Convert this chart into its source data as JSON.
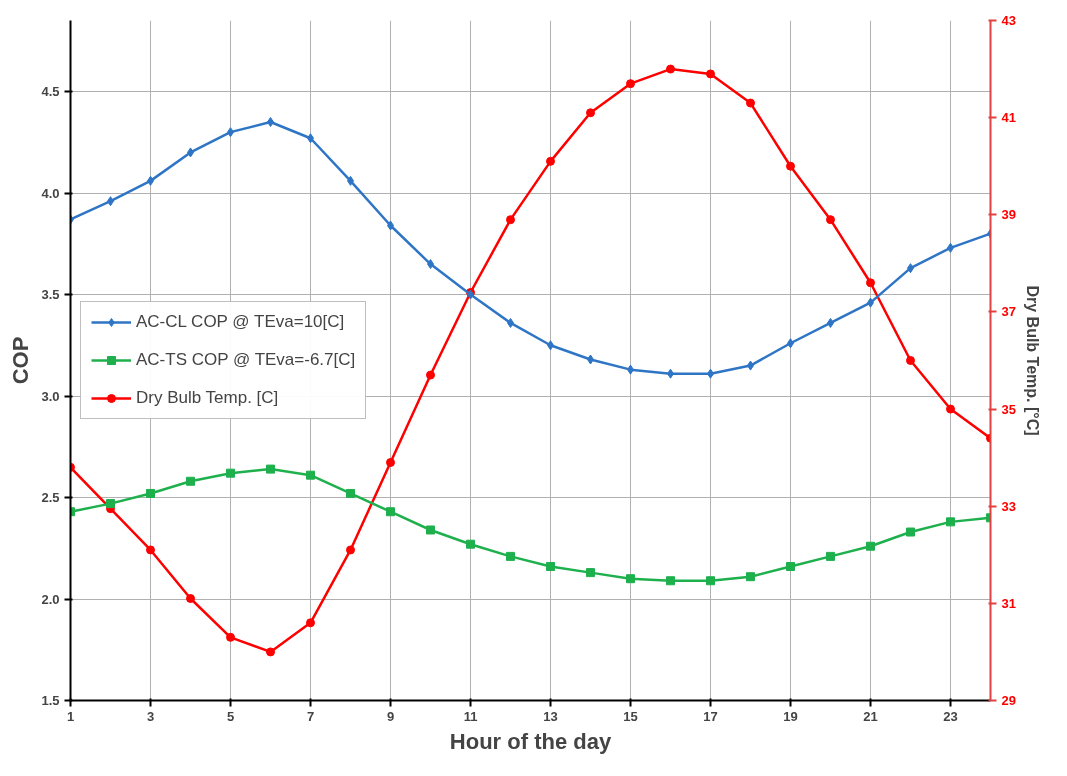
{
  "chart_data": {
    "type": "line",
    "xlabel": "Hour of the day",
    "ylabel": "COP",
    "y2label": "Dry Bulb Temp. [°C]",
    "x": [
      1,
      2,
      3,
      4,
      5,
      6,
      7,
      8,
      9,
      10,
      11,
      12,
      13,
      14,
      15,
      16,
      17,
      18,
      19,
      20,
      21,
      22,
      23,
      24
    ],
    "xlim": [
      1,
      24
    ],
    "xticks": [
      1,
      3,
      5,
      7,
      9,
      11,
      13,
      15,
      17,
      19,
      21,
      23
    ],
    "ylim": [
      1.5,
      4.85
    ],
    "yticks": [
      1.5,
      {
        "value": 2,
        "label": "2.0"
      },
      2.5,
      {
        "value": 3,
        "label": "3.0"
      },
      3.5,
      {
        "value": 4,
        "label": "4.0"
      },
      4.5
    ],
    "y2lim": [
      29,
      43
    ],
    "y2ticks": [
      29,
      31,
      33,
      35,
      37,
      39,
      41,
      43
    ],
    "grid": true,
    "legend": "left",
    "series": [
      {
        "name": "AC-CL COP @ TEva=10[C]",
        "color": "#2e75c6",
        "marker": "diamond",
        "values": [
          3.87,
          3.96,
          4.06,
          4.2,
          4.3,
          4.35,
          4.27,
          4.06,
          3.84,
          3.65,
          3.5,
          3.36,
          3.25,
          3.18,
          3.13,
          3.11,
          3.11,
          3.15,
          3.26,
          3.36,
          3.46,
          3.63,
          3.73,
          3.8
        ]
      },
      {
        "name": "AC-TS COP @ TEva=-6.7[C]",
        "color": "#1fb04e",
        "marker": "square",
        "values": [
          2.43,
          2.47,
          2.52,
          2.58,
          2.62,
          2.64,
          2.61,
          2.52,
          2.43,
          2.34,
          2.27,
          2.21,
          2.16,
          2.13,
          2.1,
          2.09,
          2.09,
          2.11,
          2.16,
          2.21,
          2.26,
          2.33,
          2.38,
          2.4
        ]
      },
      {
        "name": "Dry Bulb Temp. [C]",
        "color": "#ff0000",
        "marker": "circle",
        "axis": "y2",
        "values": [
          33.8,
          32.95,
          32.1,
          31.1,
          30.3,
          30.0,
          30.6,
          32.1,
          33.9,
          35.7,
          37.4,
          38.9,
          40.1,
          41.1,
          41.7,
          42.0,
          41.9,
          41.3,
          40.0,
          38.9,
          37.6,
          36.0,
          35.0,
          34.4
        ]
      }
    ]
  }
}
